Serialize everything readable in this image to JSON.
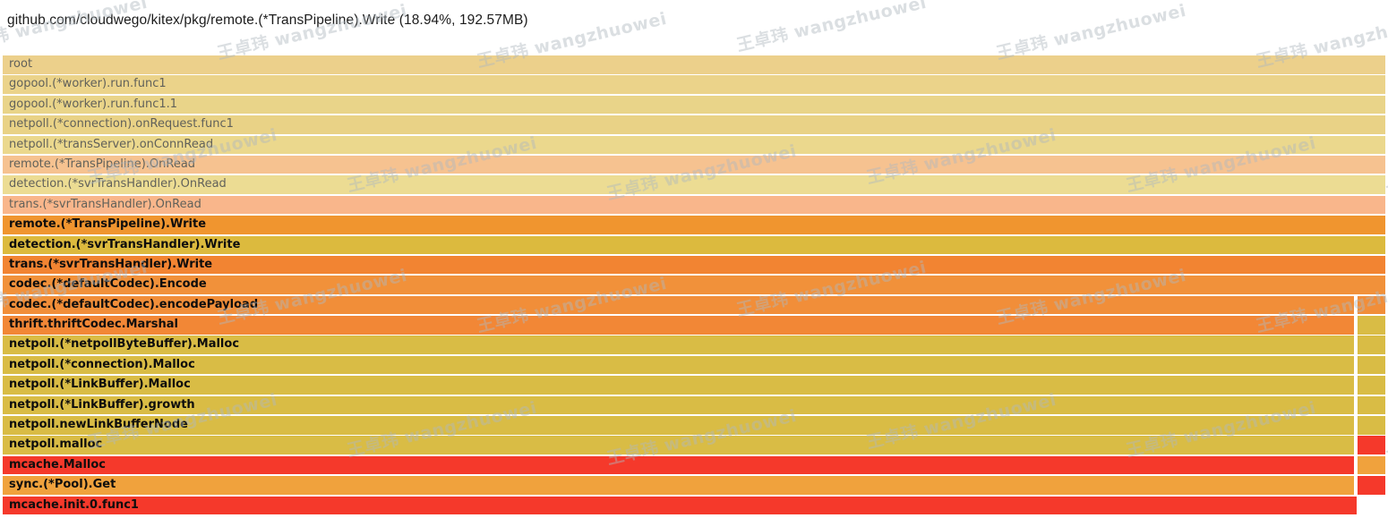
{
  "header": {
    "title": "github.com/cloudwego/kitex/pkg/remote.(*TransPipeline).Write (18.94%, 192.57MB)"
  },
  "watermark": {
    "text": "王卓玮 wangzhuowei"
  },
  "chart_data": {
    "type": "flamegraph",
    "title": "github.com/cloudwego/kitex/pkg/remote.(*TransPipeline).Write (18.94%, 192.57MB)",
    "selected_function": "remote.(*TransPipeline).Write",
    "selected_percent": "18.94%",
    "selected_size": "192.57MB",
    "stack_order": "root at top, deepest call at bottom; rows 13-22 have a small second segment at far right",
    "frames": [
      {
        "label": "root",
        "color": "#ecd08b",
        "right_color": null,
        "dim": true
      },
      {
        "label": "gopool.(*worker).run.func1",
        "color": "#ebd38a",
        "right_color": null,
        "dim": true
      },
      {
        "label": "gopool.(*worker).run.func1.1",
        "color": "#e9d489",
        "right_color": null,
        "dim": true
      },
      {
        "label": "netpoll.(*connection).onRequest.func1",
        "color": "#e9d286",
        "right_color": null,
        "dim": true
      },
      {
        "label": "netpoll.(*transServer).onConnRead",
        "color": "#ebd88d",
        "right_color": null,
        "dim": true
      },
      {
        "label": "remote.(*TransPipeline).OnRead",
        "color": "#f6c290",
        "right_color": null,
        "dim": true
      },
      {
        "label": "detection.(*svrTransHandler).OnRead",
        "color": "#ecdc93",
        "right_color": null,
        "dim": true
      },
      {
        "label": "trans.(*svrTransHandler).OnRead",
        "color": "#f9b68b",
        "right_color": null,
        "dim": true
      },
      {
        "label": "remote.(*TransPipeline).Write",
        "color": "#f0952f",
        "right_color": null,
        "dim": false
      },
      {
        "label": "detection.(*svrTransHandler).Write",
        "color": "#dcba3e",
        "right_color": null,
        "dim": false
      },
      {
        "label": "trans.(*svrTransHandler).Write",
        "color": "#f28432",
        "right_color": null,
        "dim": false
      },
      {
        "label": "codec.(*defaultCodec).Encode",
        "color": "#f1913a",
        "right_color": null,
        "dim": false
      },
      {
        "label": "codec.(*defaultCodec).encodePayload",
        "color": "#f18e39",
        "right_color": "#f18e39",
        "dim": false
      },
      {
        "label": "thrift.thriftCodec.Marshal",
        "color": "#f28736",
        "right_color": "#d9bc45",
        "dim": false
      },
      {
        "label": "netpoll.(*netpollByteBuffer).Malloc",
        "color": "#d9bc45",
        "right_color": "#d9bc45",
        "dim": false
      },
      {
        "label": "netpoll.(*connection).Malloc",
        "color": "#d9bc45",
        "right_color": "#d9bc45",
        "dim": false
      },
      {
        "label": "netpoll.(*LinkBuffer).Malloc",
        "color": "#d9bc45",
        "right_color": "#d9bc45",
        "dim": false
      },
      {
        "label": "netpoll.(*LinkBuffer).growth",
        "color": "#d9bc45",
        "right_color": "#d9bc45",
        "dim": false
      },
      {
        "label": "netpoll.newLinkBufferNode",
        "color": "#d9bc45",
        "right_color": "#d9bc45",
        "dim": false
      },
      {
        "label": "netpoll.malloc",
        "color": "#d9bc45",
        "right_color": "#f5392b",
        "dim": false
      },
      {
        "label": "mcache.Malloc",
        "color": "#f5392b",
        "right_color": "#f0a23d",
        "dim": false
      },
      {
        "label": "sync.(*Pool).Get",
        "color": "#f0a23d",
        "right_color": "#f5392b",
        "dim": false
      },
      {
        "label": "mcache.init.0.func1",
        "color": "#f5392b",
        "right_color": null,
        "dim": false
      }
    ]
  }
}
